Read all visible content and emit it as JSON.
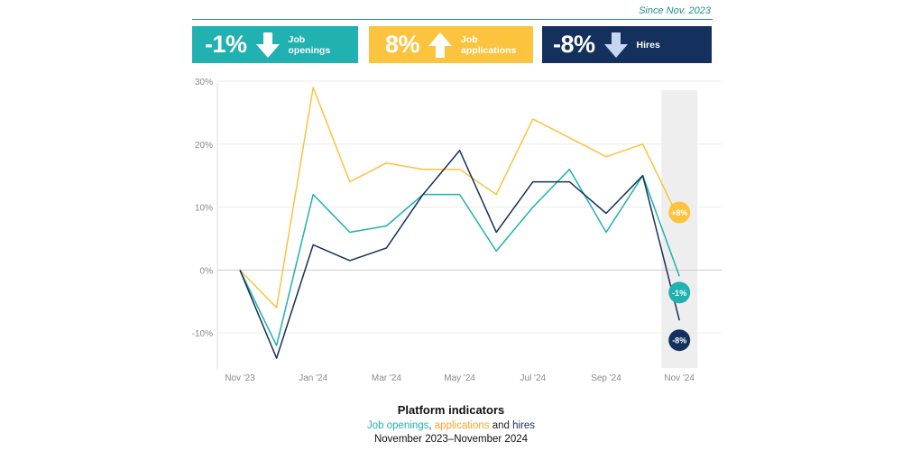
{
  "since_label": "Since Nov. 2023",
  "kpis": [
    {
      "value": "-1%",
      "label": "Job\nopenings",
      "direction": "down",
      "color": "#20b1b0"
    },
    {
      "value": "8%",
      "label": "Job\napplications",
      "direction": "up",
      "color": "#fbc33e"
    },
    {
      "value": "-8%",
      "label": "Hires",
      "direction": "down",
      "color": "#14305c"
    }
  ],
  "chart_data": {
    "type": "line",
    "title": "Platform indicators",
    "subtitle_parts": [
      "Job openings",
      ", ",
      "applications",
      " and ",
      "hires"
    ],
    "date_range": "November 2023–November 2024",
    "x": [
      "Nov '23",
      "Dec '23",
      "Jan '24",
      "Feb '24",
      "Mar '24",
      "Apr '24",
      "May '24",
      "Jun '24",
      "Jul '24",
      "Aug '24",
      "Sep '24",
      "Oct '24",
      "Nov '24"
    ],
    "x_tick_labels": [
      "Nov '23",
      "Jan '24",
      "Mar '24",
      "May '24",
      "Jul '24",
      "Sep '24",
      "Nov '24"
    ],
    "y_ticks": [
      -10,
      0,
      10,
      20,
      30
    ],
    "y_tick_labels": [
      "-10%",
      "0%",
      "10%",
      "20%",
      "30%"
    ],
    "ylim": [
      -17,
      31
    ],
    "highlight_category": "Nov '24",
    "series": [
      {
        "name": "Job applications",
        "color": "#fbc33e",
        "values": [
          0,
          -6,
          29,
          14,
          17,
          16,
          16,
          12,
          24,
          21,
          18,
          20,
          8
        ],
        "end_label": "+8%"
      },
      {
        "name": "Job openings",
        "color": "#20b1b0",
        "values": [
          0,
          -12,
          12,
          6,
          7,
          12,
          12,
          3,
          10,
          16,
          6,
          15,
          -1
        ],
        "end_label": "-1%"
      },
      {
        "name": "Hires",
        "color": "#14305c",
        "values": [
          0,
          -14,
          4,
          1.5,
          3.5,
          12,
          19,
          6,
          14,
          14,
          9,
          15,
          -8
        ],
        "end_label": "-8%"
      }
    ]
  }
}
